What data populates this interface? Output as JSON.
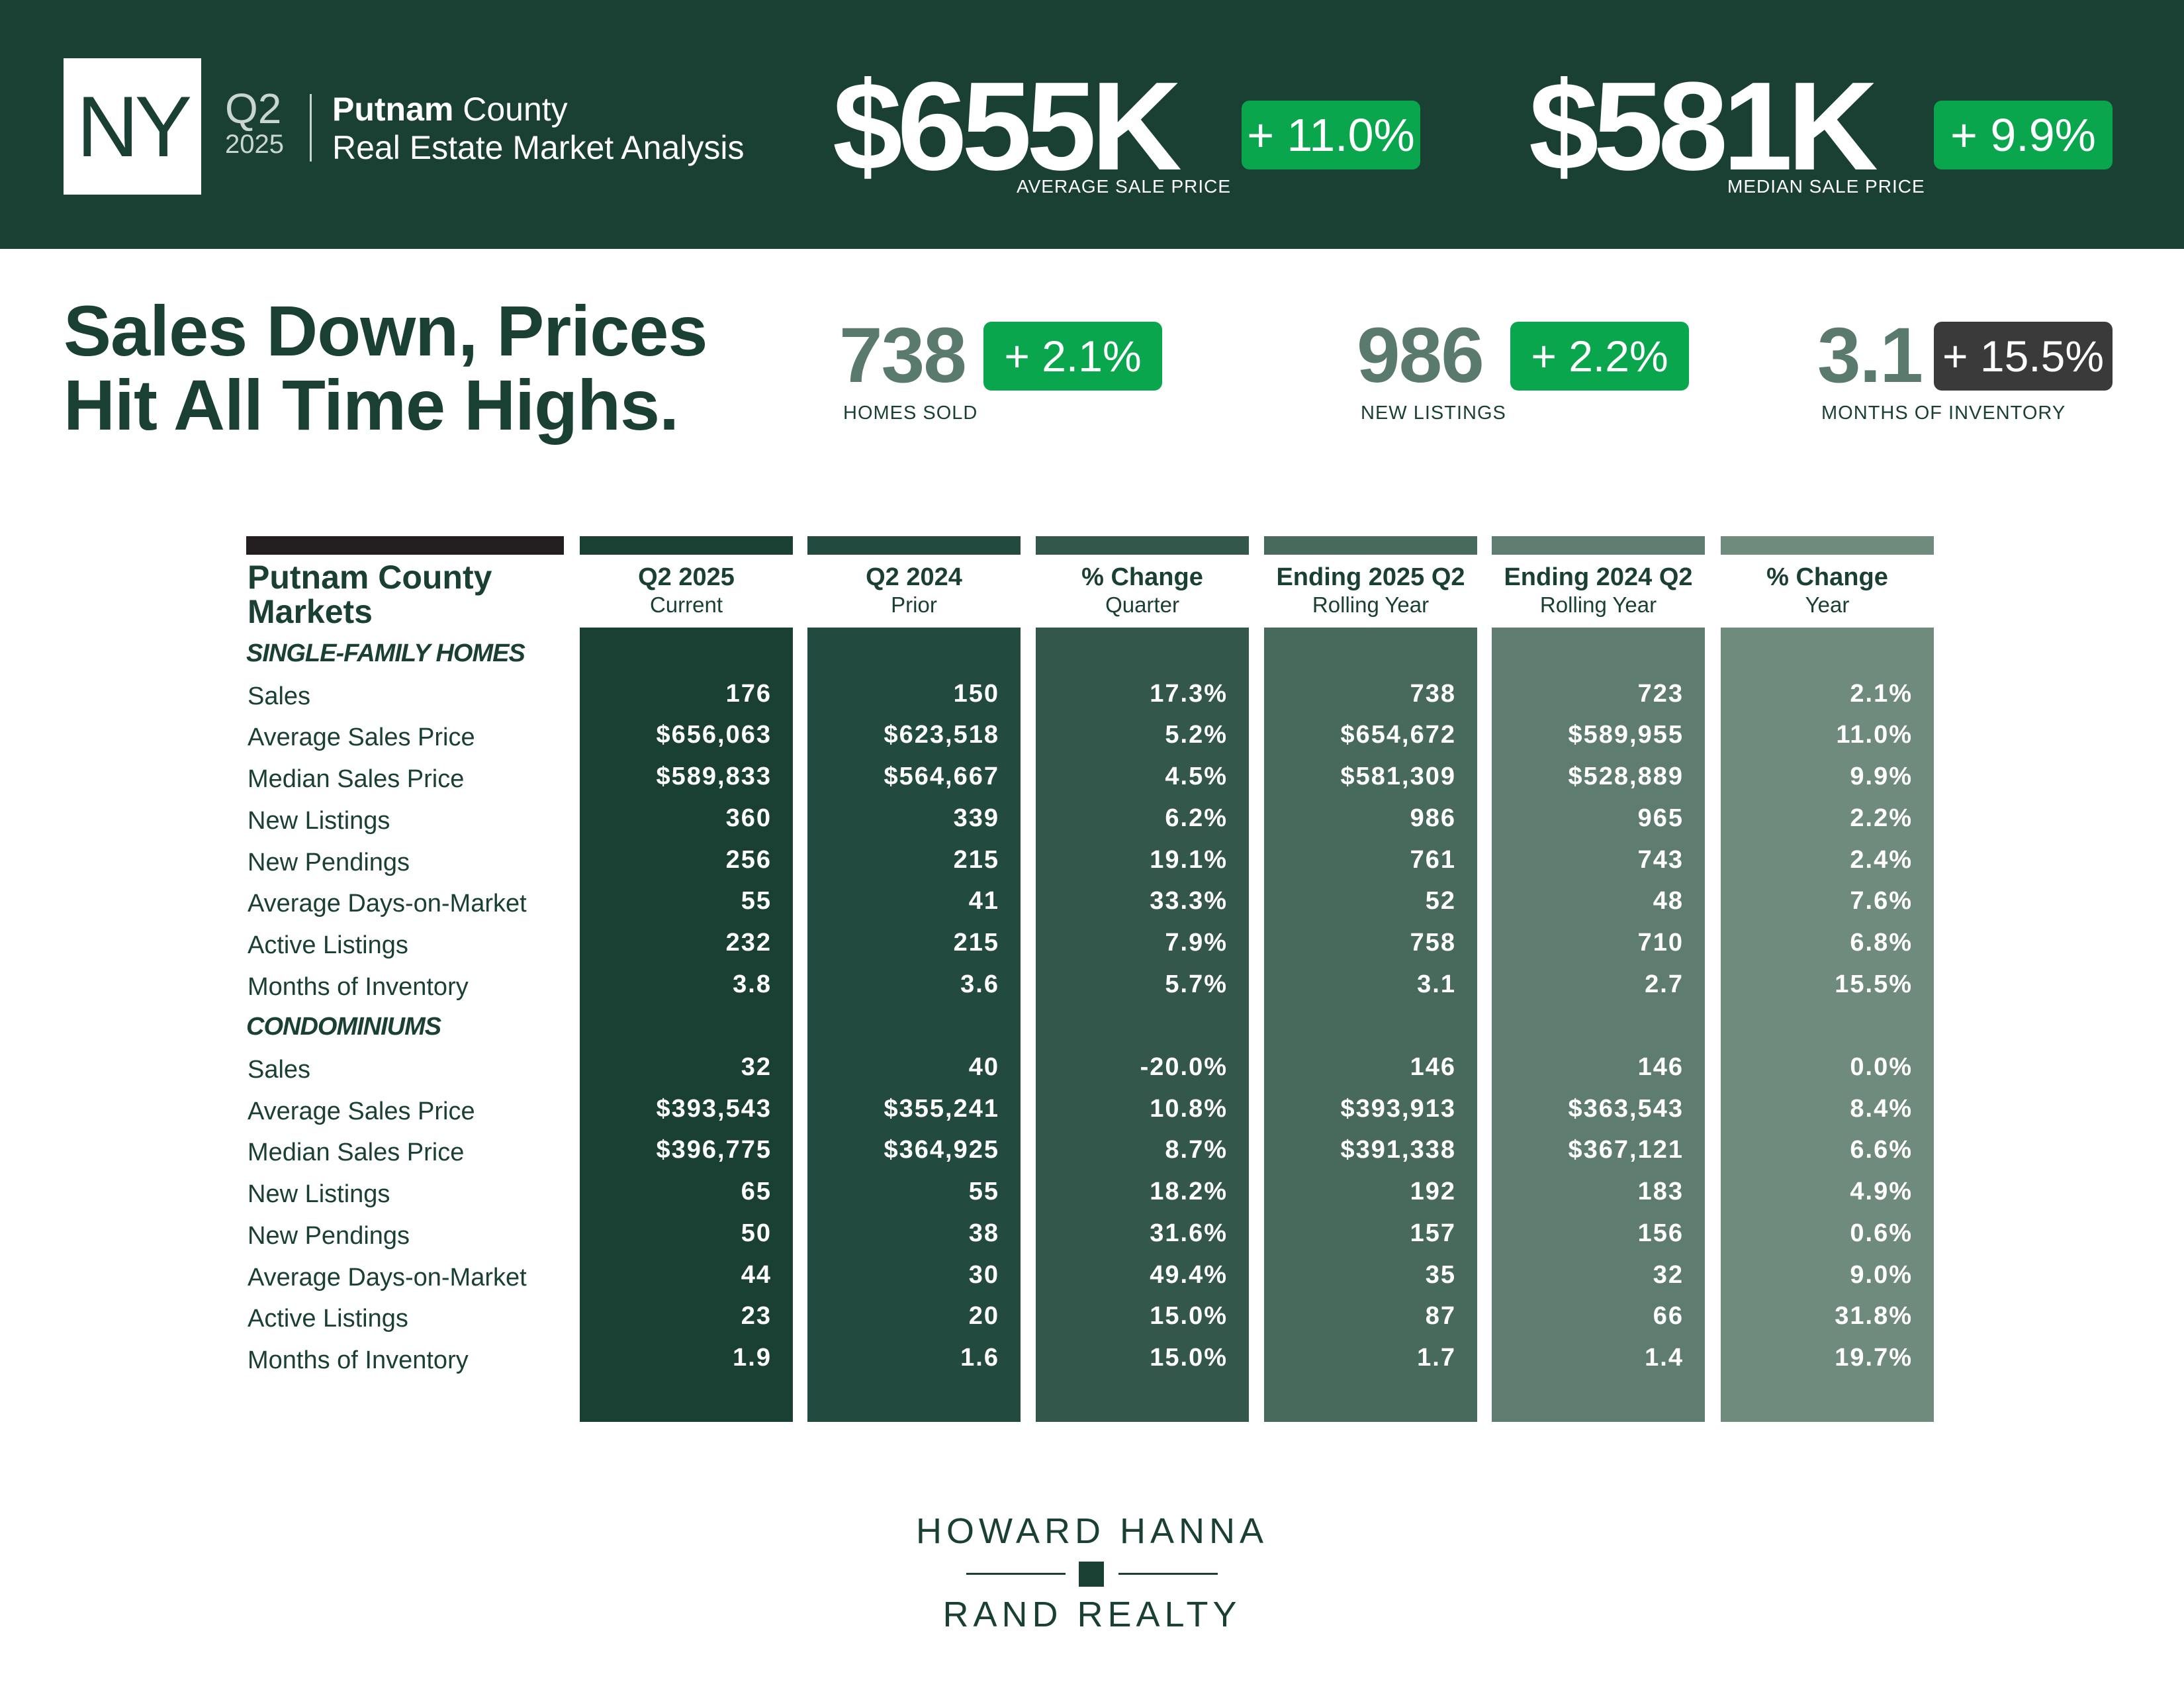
{
  "header": {
    "state": "NY",
    "quarter": "Q2",
    "year": "2025",
    "county_bold": "Putnam",
    "county_rest": " County",
    "subtitle": "Real Estate Market Analysis",
    "avg_price": {
      "value": "$655K",
      "change": "+ 11.0%",
      "label": "AVERAGE SALE PRICE"
    },
    "median_price": {
      "value": "$581K",
      "change": "+ 9.9%",
      "label": "MEDIAN SALE PRICE"
    }
  },
  "headline": {
    "line1": "Sales Down, Prices",
    "line2": "Hit All Time Highs."
  },
  "highlights": [
    {
      "value": "738",
      "change": "+ 2.1%",
      "label": "HOMES SOLD"
    },
    {
      "value": "986",
      "change": "+ 2.2%",
      "label": "NEW LISTINGS"
    },
    {
      "value": "3.1",
      "change": "+ 15.5%",
      "label": "MONTHS OF INVENTORY"
    }
  ],
  "table": {
    "title_line1": "Putnam County",
    "title_line2": "Markets",
    "columns": [
      {
        "h1": "Q2 2025",
        "h2": "Current"
      },
      {
        "h1": "Q2 2024",
        "h2": "Prior"
      },
      {
        "h1": "% Change",
        "h2": "Quarter"
      },
      {
        "h1": "Ending 2025 Q2",
        "h2": "Rolling Year"
      },
      {
        "h1": "Ending 2024 Q2",
        "h2": "Rolling Year"
      },
      {
        "h1": "% Change",
        "h2": "Year"
      }
    ],
    "column_colors": [
      "#1a4034",
      "#234a3e",
      "#33574b",
      "#486a5d",
      "#5e7d70",
      "#6e8b7e"
    ],
    "sections": [
      {
        "name": "SINGLE-FAMILY HOMES",
        "rows": [
          {
            "label": "Sales",
            "values": [
              "176",
              "150",
              "17.3%",
              "738",
              "723",
              "2.1%"
            ]
          },
          {
            "label": "Average Sales Price",
            "values": [
              "$656,063",
              "$623,518",
              "5.2%",
              "$654,672",
              "$589,955",
              "11.0%"
            ]
          },
          {
            "label": "Median Sales Price",
            "values": [
              "$589,833",
              "$564,667",
              "4.5%",
              "$581,309",
              "$528,889",
              "9.9%"
            ]
          },
          {
            "label": "New Listings",
            "values": [
              "360",
              "339",
              "6.2%",
              "986",
              "965",
              "2.2%"
            ]
          },
          {
            "label": "New Pendings",
            "values": [
              "256",
              "215",
              "19.1%",
              "761",
              "743",
              "2.4%"
            ]
          },
          {
            "label": "Average Days-on-Market",
            "values": [
              "55",
              "41",
              "33.3%",
              "52",
              "48",
              "7.6%"
            ]
          },
          {
            "label": "Active Listings",
            "values": [
              "232",
              "215",
              "7.9%",
              "758",
              "710",
              "6.8%"
            ]
          },
          {
            "label": "Months of Inventory",
            "values": [
              "3.8",
              "3.6",
              "5.7%",
              "3.1",
              "2.7",
              "15.5%"
            ]
          }
        ]
      },
      {
        "name": "CONDOMINIUMS",
        "rows": [
          {
            "label": "Sales",
            "values": [
              "32",
              "40",
              "-20.0%",
              "146",
              "146",
              "0.0%"
            ]
          },
          {
            "label": "Average Sales Price",
            "values": [
              "$393,543",
              "$355,241",
              "10.8%",
              "$393,913",
              "$363,543",
              "8.4%"
            ]
          },
          {
            "label": "Median Sales Price",
            "values": [
              "$396,775",
              "$364,925",
              "8.7%",
              "$391,338",
              "$367,121",
              "6.6%"
            ]
          },
          {
            "label": "New Listings",
            "values": [
              "65",
              "55",
              "18.2%",
              "192",
              "183",
              "4.9%"
            ]
          },
          {
            "label": "New Pendings",
            "values": [
              "50",
              "38",
              "31.6%",
              "157",
              "156",
              "0.6%"
            ]
          },
          {
            "label": "Average Days-on-Market",
            "values": [
              "44",
              "30",
              "49.4%",
              "35",
              "32",
              "9.0%"
            ]
          },
          {
            "label": "Active Listings",
            "values": [
              "23",
              "20",
              "15.0%",
              "87",
              "66",
              "31.8%"
            ]
          },
          {
            "label": "Months of Inventory",
            "values": [
              "1.9",
              "1.6",
              "15.0%",
              "1.7",
              "1.4",
              "19.7%"
            ]
          }
        ]
      }
    ]
  },
  "logo": {
    "line1": "HOWARD HANNA",
    "line2": "RAND REALTY"
  },
  "colors": {
    "brand_dark": "#1a4034",
    "positive_green": "#0aa64e",
    "neutral_dark": "#3a3a3a"
  }
}
